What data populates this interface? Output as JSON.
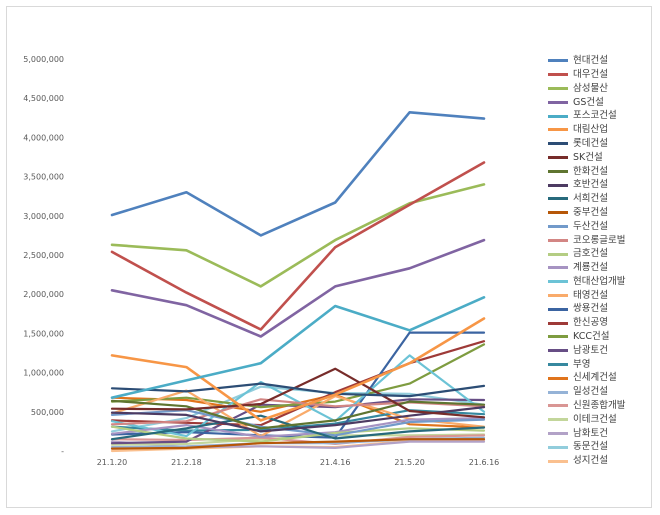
{
  "chart_data": {
    "type": "line",
    "title": "",
    "xlabel": "",
    "ylabel": "",
    "ylim": [
      0,
      5000000
    ],
    "yticks": [
      0,
      500000,
      1000000,
      1500000,
      2000000,
      2500000,
      3000000,
      3500000,
      4000000,
      4500000,
      5000000
    ],
    "ytick_labels": [
      "-",
      "500,000",
      "1,000,000",
      "1,500,000",
      "2,000,000",
      "2,500,000",
      "3,000,000",
      "3,500,000",
      "4,000,000",
      "4,500,000",
      "5,000,000"
    ],
    "categories": [
      "21.1.20",
      "21.2.18",
      "21.3.18",
      "21.4.16",
      "21.5.20",
      "21.6.16"
    ],
    "legend_position": "right",
    "grid": false,
    "series": [
      {
        "name": "현대건설",
        "color": "#4f81bd",
        "values": [
          3010000,
          3300000,
          2750000,
          3170000,
          4320000,
          4240000
        ]
      },
      {
        "name": "대우건설",
        "color": "#c0504d",
        "values": [
          2540000,
          2020000,
          1550000,
          2600000,
          3140000,
          3680000
        ]
      },
      {
        "name": "삼성물산",
        "color": "#9bbb59",
        "values": [
          2630000,
          2560000,
          2100000,
          2690000,
          3160000,
          3400000
        ]
      },
      {
        "name": "GS건설",
        "color": "#8064a2",
        "values": [
          2050000,
          1860000,
          1460000,
          2100000,
          2330000,
          2690000
        ]
      },
      {
        "name": "포스코건설",
        "color": "#4bacc6",
        "values": [
          680000,
          900000,
          1120000,
          1850000,
          1540000,
          1960000
        ]
      },
      {
        "name": "대림산업",
        "color": "#f79646",
        "values": [
          1220000,
          1070000,
          390000,
          720000,
          1120000,
          1690000
        ]
      },
      {
        "name": "롯데건설",
        "color": "#2c4d75",
        "values": [
          800000,
          760000,
          860000,
          730000,
          700000,
          830000
        ]
      },
      {
        "name": "SK건설",
        "color": "#772c2a",
        "values": [
          540000,
          530000,
          600000,
          1050000,
          510000,
          430000
        ]
      },
      {
        "name": "한화건설",
        "color": "#5f7530",
        "values": [
          640000,
          570000,
          290000,
          390000,
          630000,
          590000
        ]
      },
      {
        "name": "호반건설",
        "color": "#4d3b62",
        "values": [
          490000,
          460000,
          250000,
          330000,
          450000,
          560000
        ]
      },
      {
        "name": "서희건설",
        "color": "#276a7c",
        "values": [
          150000,
          290000,
          450000,
          160000,
          250000,
          300000
        ]
      },
      {
        "name": "중부건설",
        "color": "#b65708",
        "values": [
          30000,
          40000,
          100000,
          120000,
          150000,
          150000
        ]
      },
      {
        "name": "두산건설",
        "color": "#729aca",
        "values": [
          460000,
          520000,
          310000,
          200000,
          370000,
          400000
        ]
      },
      {
        "name": "코오롱글로벌",
        "color": "#d38684",
        "values": [
          340000,
          380000,
          660000,
          570000,
          620000,
          570000
        ]
      },
      {
        "name": "금호건설",
        "color": "#b4cd83",
        "values": [
          310000,
          160000,
          120000,
          230000,
          290000,
          260000
        ]
      },
      {
        "name": "계룡건설",
        "color": "#a693c2",
        "values": [
          220000,
          330000,
          180000,
          240000,
          400000,
          420000
        ]
      },
      {
        "name": "현대산업개발",
        "color": "#6cc3d6",
        "values": [
          380000,
          190000,
          880000,
          380000,
          1220000,
          500000
        ]
      },
      {
        "name": "태영건설",
        "color": "#f9ab6b",
        "values": [
          480000,
          770000,
          190000,
          700000,
          410000,
          310000
        ]
      },
      {
        "name": "쌍용건설",
        "color": "#3b64a1",
        "values": [
          210000,
          240000,
          200000,
          170000,
          1510000,
          1510000
        ]
      },
      {
        "name": "한신공영",
        "color": "#9e3a38",
        "values": [
          390000,
          360000,
          330000,
          750000,
          1120000,
          1400000
        ]
      },
      {
        "name": "KCC건설",
        "color": "#7e9c40",
        "values": [
          630000,
          680000,
          560000,
          630000,
          860000,
          1360000
        ]
      },
      {
        "name": "남광토건",
        "color": "#674e85",
        "values": [
          100000,
          120000,
          590000,
          560000,
          660000,
          650000
        ]
      },
      {
        "name": "부영",
        "color": "#36889f",
        "values": [
          310000,
          260000,
          270000,
          350000,
          520000,
          470000
        ]
      },
      {
        "name": "신세계건설",
        "color": "#e0741c",
        "values": [
          680000,
          650000,
          500000,
          720000,
          340000,
          300000
        ]
      },
      {
        "name": "일성건설",
        "color": "#95b3d7",
        "values": [
          50000,
          60000,
          100000,
          100000,
          150000,
          170000
        ]
      },
      {
        "name": "신원종합개발",
        "color": "#d99694",
        "values": [
          150000,
          140000,
          170000,
          90000,
          180000,
          200000
        ]
      },
      {
        "name": "이테크건설",
        "color": "#c3d69b",
        "values": [
          80000,
          90000,
          150000,
          200000,
          200000,
          210000
        ]
      },
      {
        "name": "남화토건",
        "color": "#b2a2c7",
        "values": [
          120000,
          50000,
          60000,
          40000,
          120000,
          120000
        ]
      },
      {
        "name": "동문건설",
        "color": "#92cddc",
        "values": [
          250000,
          420000,
          820000,
          740000,
          730000,
          590000
        ]
      },
      {
        "name": "성지건설",
        "color": "#fac08f",
        "values": [
          0,
          30000,
          60000,
          50000,
          130000,
          140000
        ]
      }
    ]
  }
}
